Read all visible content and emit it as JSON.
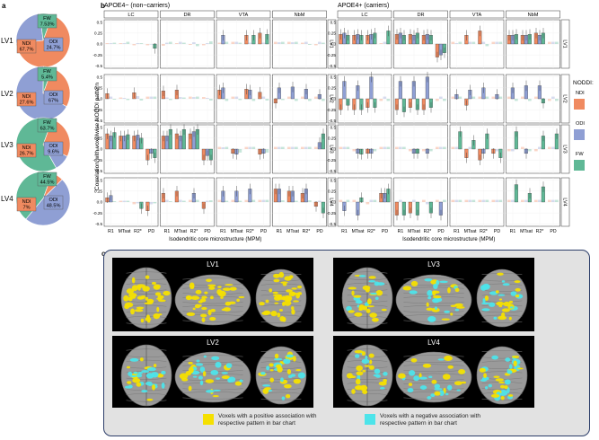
{
  "panel_letters": {
    "a": "a",
    "b": "b",
    "c": "c"
  },
  "colors": {
    "NDI": "#f08a60",
    "ODI": "#8f9fd4",
    "FW": "#5fb896"
  },
  "panel_a": {
    "pies": [
      {
        "lv": "LV1",
        "slices": [
          {
            "name": "NDI",
            "value": 67.7,
            "label": "67.7%"
          },
          {
            "name": "ODI",
            "value": 24.7,
            "label": "24.7%"
          },
          {
            "name": "FW",
            "value": 7.53,
            "label": "7.53%"
          }
        ]
      },
      {
        "lv": "LV2",
        "slices": [
          {
            "name": "NDI",
            "value": 27.6,
            "label": "27.6%"
          },
          {
            "name": "ODI",
            "value": 67,
            "label": "67%"
          },
          {
            "name": "FW",
            "value": 5.4,
            "label": "5.4%"
          }
        ]
      },
      {
        "lv": "LV3",
        "slices": [
          {
            "name": "NDI",
            "value": 26.7,
            "label": "26.7%"
          },
          {
            "name": "ODI",
            "value": 9.6,
            "label": "9.6%"
          },
          {
            "name": "FW",
            "value": 63.7,
            "label": "63.7%"
          }
        ]
      },
      {
        "lv": "LV4",
        "slices": [
          {
            "name": "NDI",
            "value": 7,
            "label": "7%"
          },
          {
            "name": "ODI",
            "value": 48.5,
            "label": "48.5%"
          },
          {
            "name": "FW",
            "value": 44.5,
            "label": "44.5%"
          }
        ]
      }
    ]
  },
  "chart_data": {
    "type": "bar",
    "ylabel": "Correlation with voxelwise NODDI pattern",
    "xlabel": "Isodendritic core microstructure (MPM)",
    "ylim": [
      -0.5,
      0.5
    ],
    "yticks": [
      "0.5",
      "0.0",
      "-0.5"
    ],
    "tick_values": [
      0.5,
      0.25,
      0,
      -0.25,
      -0.5
    ],
    "tick_labels": [
      "0.5",
      "0.25",
      "0.0",
      "-0.25",
      "-0.5"
    ],
    "legend_title": "NODDI:",
    "legend": [
      "NDI",
      "ODI",
      "FW"
    ],
    "regions": [
      "LC",
      "DR",
      "VTA",
      "NbM"
    ],
    "x_categories": [
      "R1",
      "MTsat",
      "R2*",
      "PD"
    ],
    "rows": [
      "LV1",
      "LV2",
      "LV3",
      "LV4"
    ],
    "groups": [
      {
        "title": "APOE4− (non−carriers)",
        "values": [
          [
            [
              [
                0.02,
                0.02,
                0.03
              ],
              [
                0.02,
                0.02,
                0.05
              ],
              [
                -0.03,
                0.02,
                0.02
              ],
              [
                -0.03,
                -0.01,
                -0.1
              ]
            ],
            [
              [
                -0.04,
                0.03,
                0.05
              ],
              [
                0.02,
                0.05,
                0.03
              ],
              [
                -0.02,
                0.04,
                -0.05
              ],
              [
                -0.03,
                0.02,
                0.06
              ]
            ],
            [
              [
                0.03,
                0.2,
                0.05
              ],
              [
                0.05,
                0.05,
                0.03
              ],
              [
                0.2,
                0.03,
                0.2
              ],
              [
                0.25,
                0.03,
                0.22
              ]
            ],
            [
              [
                0.05,
                0.04,
                0.05
              ],
              [
                0.05,
                0.04,
                0.05
              ],
              [
                0.03,
                0.05,
                -0.02
              ],
              [
                -0.03,
                0.05,
                0.03
              ]
            ]
          ],
          [
            [
              [
                0.12,
                0.05,
                -0.02
              ],
              [
                0.03,
                0.02,
                -0.03
              ],
              [
                0.14,
                0.06,
                -0.04
              ],
              [
                0.05,
                0.05,
                0.05
              ]
            ],
            [
              [
                0.18,
                0.03,
                -0.03
              ],
              [
                0.2,
                0.04,
                0.03
              ],
              [
                0.05,
                0.04,
                0.05
              ],
              [
                0.04,
                0.02,
                -0.04
              ]
            ],
            [
              [
                0.2,
                0.25,
                -0.05
              ],
              [
                0.05,
                0.05,
                -0.03
              ],
              [
                0.22,
                0.2,
                -0.05
              ],
              [
                0.15,
                0.05,
                -0.04
              ]
            ],
            [
              [
                -0.1,
                0.25,
                -0.03
              ],
              [
                0.05,
                0.27,
                -0.05
              ],
              [
                0.05,
                0.22,
                -0.05
              ],
              [
                0.05,
                0.1,
                -0.05
              ]
            ]
          ],
          [
            [
              [
                0.35,
                0.3,
                0.38
              ],
              [
                0.3,
                0.3,
                0.33
              ],
              [
                0.3,
                0.32,
                0.25
              ],
              [
                -0.25,
                -0.1,
                -0.2
              ]
            ],
            [
              [
                0.3,
                0.3,
                0.45
              ],
              [
                0.35,
                0.3,
                0.45
              ],
              [
                0.35,
                0.4,
                0.45
              ],
              [
                -0.25,
                -0.15,
                -0.25
              ]
            ],
            [
              [
                0.05,
                0.04,
                0.05
              ],
              [
                -0.1,
                -0.12,
                -0.08
              ],
              [
                0.05,
                0.05,
                0.05
              ],
              [
                -0.12,
                -0.1,
                -0.08
              ]
            ],
            [
              [
                0.05,
                0.05,
                0.05
              ],
              [
                0.05,
                0.05,
                0.05
              ],
              [
                0.05,
                0.05,
                0.05
              ],
              [
                0.05,
                0.15,
                0.35
              ]
            ]
          ],
          [
            [
              [
                0.1,
                0.15,
                0.02
              ],
              [
                0.03,
                0.03,
                0.03
              ],
              [
                -0.05,
                -0.03,
                -0.15
              ],
              [
                -0.2,
                -0.05,
                -0.03
              ]
            ],
            [
              [
                0.2,
                0.05,
                0.02
              ],
              [
                0.25,
                0.05,
                0.03
              ],
              [
                0.05,
                0.2,
                0.05
              ],
              [
                -0.15,
                0.03,
                0.04
              ]
            ],
            [
              [
                0.05,
                0.25,
                0.03
              ],
              [
                0.05,
                0.25,
                0.03
              ],
              [
                0.05,
                0.3,
                0.05
              ],
              [
                0.05,
                0.05,
                0.05
              ]
            ],
            [
              [
                0.3,
                0.3,
                0.04
              ],
              [
                0.25,
                0.25,
                0.03
              ],
              [
                0.2,
                0.3,
                0.04
              ],
              [
                -0.1,
                0.03,
                -0.25
              ]
            ]
          ]
        ]
      },
      {
        "title": "APOE4+ (carriers)",
        "values": [
          [
            [
              [
                0.22,
                0.25,
                0.2
              ],
              [
                0.2,
                0.22,
                0.2
              ],
              [
                0.2,
                0.22,
                0.25
              ],
              [
                0.02,
                0.05,
                0.3
              ]
            ],
            [
              [
                0.22,
                0.25,
                0.2
              ],
              [
                0.22,
                0.2,
                0.25
              ],
              [
                0.2,
                0.22,
                0.2
              ],
              [
                -0.3,
                -0.25,
                -0.2
              ]
            ],
            [
              [
                0.05,
                0.02,
                0.05
              ],
              [
                0.2,
                0.05,
                0.05
              ],
              [
                0.3,
                0.05,
                -0.05
              ],
              [
                0.05,
                0.05,
                0.05
              ]
            ],
            [
              [
                0.2,
                0.2,
                0.22
              ],
              [
                0.2,
                0.2,
                0.22
              ],
              [
                0.25,
                0.2,
                0.25
              ],
              [
                0.05,
                0.05,
                0.05
              ]
            ]
          ],
          [
            [
              [
                -0.25,
                0.4,
                -0.15
              ],
              [
                -0.25,
                0.3,
                -0.25
              ],
              [
                -0.2,
                0.5,
                -0.2
              ],
              [
                -0.05,
                0.05,
                -0.05
              ]
            ],
            [
              [
                -0.25,
                0.4,
                -0.3
              ],
              [
                -0.2,
                0.4,
                -0.25
              ],
              [
                -0.25,
                0.5,
                -0.2
              ],
              [
                -0.05,
                0.05,
                -0.05
              ]
            ],
            [
              [
                0.05,
                0.1,
                0.05
              ],
              [
                -0.15,
                0.2,
                0.05
              ],
              [
                0.05,
                0.25,
                0.05
              ],
              [
                0.05,
                0.1,
                0.05
              ]
            ],
            [
              [
                0.05,
                0.25,
                -0.05
              ],
              [
                0.05,
                0.3,
                -0.05
              ],
              [
                0.05,
                0.3,
                -0.1
              ],
              [
                -0.05,
                0.05,
                -0.05
              ]
            ]
          ],
          [
            [
              [
                0.05,
                0.05,
                0.05
              ],
              [
                -0.05,
                -0.1,
                -0.12
              ],
              [
                -0.1,
                -0.1,
                -0.05
              ],
              [
                0.05,
                0.05,
                0.05
              ]
            ],
            [
              [
                0.05,
                0.05,
                0.05
              ],
              [
                -0.05,
                -0.1,
                -0.1
              ],
              [
                -0.05,
                -0.1,
                -0.05
              ],
              [
                0.05,
                0.05,
                0.05
              ]
            ],
            [
              [
                0.05,
                0.05,
                0.4
              ],
              [
                -0.2,
                0.05,
                0.2
              ],
              [
                -0.25,
                -0.1,
                0.35
              ],
              [
                -0.1,
                -0.05,
                -0.2
              ]
            ],
            [
              [
                -0.05,
                -0.05,
                0.4
              ],
              [
                0.05,
                -0.1,
                -0.05
              ],
              [
                -0.05,
                0.05,
                0.3
              ],
              [
                0.05,
                0.05,
                0.35
              ]
            ]
          ],
          [
            [
              [
                0.05,
                -0.2,
                0.05
              ],
              [
                0.05,
                -0.3,
                0.1
              ],
              [
                -0.05,
                0.05,
                0.05
              ],
              [
                0.2,
                0.2,
                0.3
              ]
            ],
            [
              [
                -0.3,
                0.05,
                -0.3
              ],
              [
                -0.25,
                0.05,
                -0.3
              ],
              [
                0.05,
                -0.05,
                -0.25
              ],
              [
                0.05,
                -0.3,
                0.05
              ]
            ],
            [
              [
                0.05,
                0.05,
                0.05
              ],
              [
                0.05,
                0.05,
                0.05
              ],
              [
                0.05,
                0.05,
                0.05
              ],
              [
                0.05,
                0.05,
                0.05
              ]
            ],
            [
              [
                0.05,
                0.05,
                0.4
              ],
              [
                0.05,
                0.05,
                0.2
              ],
              [
                0.05,
                0.05,
                0.35
              ],
              [
                0.05,
                0.05,
                0.05
              ]
            ]
          ]
        ]
      }
    ]
  },
  "panel_c": {
    "views": [
      {
        "lv": "LV1",
        "label": "LV1"
      },
      {
        "lv": "LV3",
        "label": "LV3"
      },
      {
        "lv": "LV2",
        "label": "LV2"
      },
      {
        "lv": "LV4",
        "label": "LV4"
      }
    ],
    "legend": [
      {
        "color": "#f5e000",
        "text": "Voxels with a positive association with respective pattern in bar chart"
      },
      {
        "color": "#4de4ea",
        "text": "Voxels with a negative association with respective pattern in bar chart"
      }
    ]
  }
}
